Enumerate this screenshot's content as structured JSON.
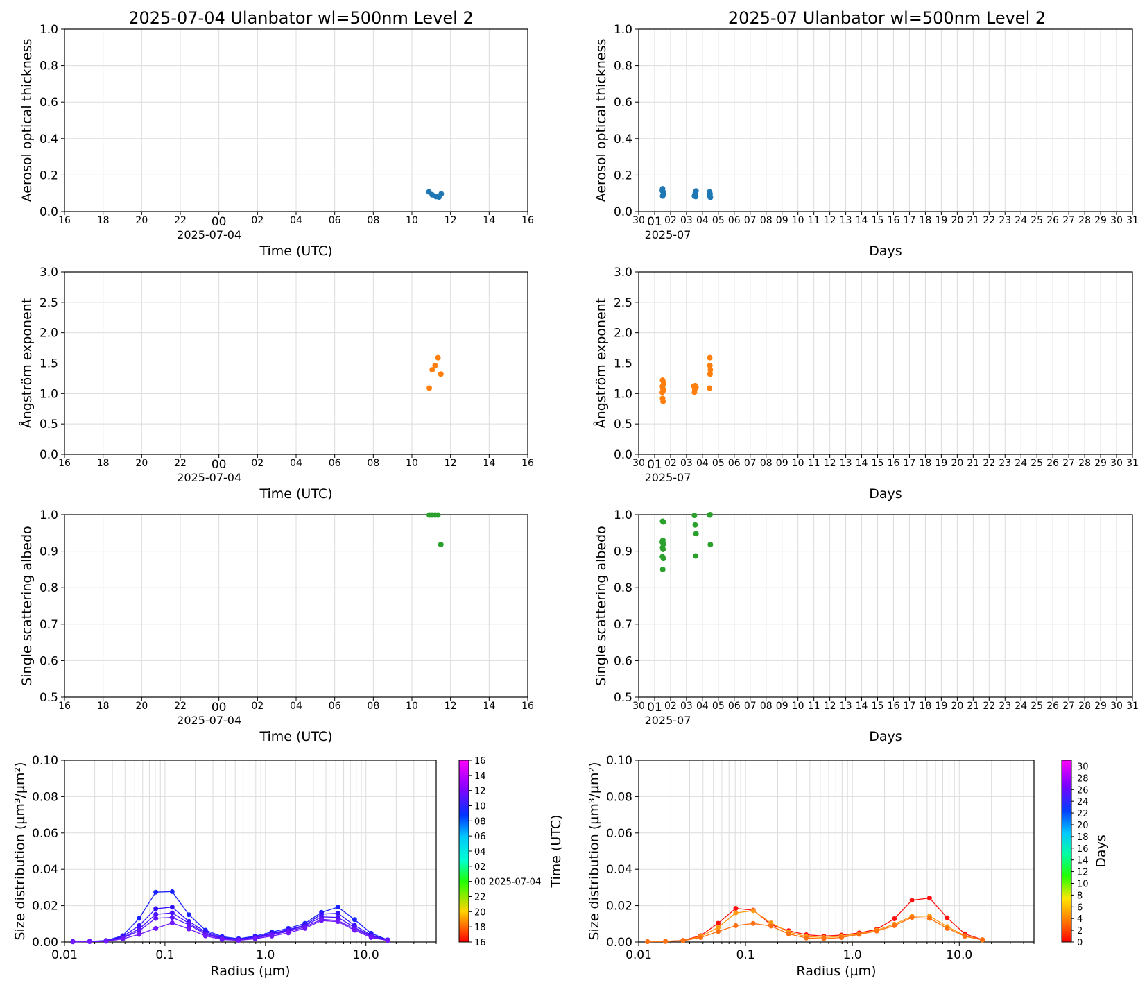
{
  "left_title": "2025-07-04  Ulanbator  wl=500nm  Level 2",
  "right_title": "2025-07  Ulanbator  wl=500nm  Level 2",
  "left_xlabel": "Time (UTC)",
  "left_date_label": "2025-07-04",
  "right_xlabel": "Days",
  "right_month_label": "2025-07",
  "hour_ticks": [
    "16",
    "18",
    "20",
    "22",
    "00",
    "02",
    "04",
    "06",
    "08",
    "10",
    "12",
    "14",
    "16"
  ],
  "day_ticks": [
    "30",
    "01",
    "02",
    "03",
    "04",
    "05",
    "06",
    "07",
    "08",
    "09",
    "10",
    "11",
    "12",
    "13",
    "14",
    "15",
    "16",
    "17",
    "18",
    "19",
    "20",
    "21",
    "22",
    "23",
    "24",
    "25",
    "26",
    "27",
    "28",
    "29",
    "30",
    "31"
  ],
  "chart_data": [
    {
      "id": "aot_day",
      "type": "scatter",
      "ylabel": "Aerosol optical thickness",
      "x_unit": "hours since 2025-07-03 16:00 UTC",
      "xlim": [
        0,
        24
      ],
      "ylim": [
        0,
        1.0
      ],
      "yticks": [
        "0.0",
        "0.2",
        "0.4",
        "0.6",
        "0.8",
        "1.0"
      ],
      "color": "#1f77b4",
      "x": [
        18.88,
        19.05,
        19.25,
        19.4,
        19.52
      ],
      "y": [
        0.108,
        0.092,
        0.082,
        0.079,
        0.097
      ]
    },
    {
      "id": "aot_month",
      "type": "scatter",
      "ylabel": "Aerosol optical thickness",
      "x_unit": "days since 2025-06-30 00:00",
      "xlim": [
        0,
        31
      ],
      "ylim": [
        0,
        1.0
      ],
      "yticks": [
        "0.0",
        "0.2",
        "0.4",
        "0.6",
        "0.8",
        "1.0"
      ],
      "color": "#1f77b4",
      "x": [
        1.5,
        1.52,
        1.55,
        1.5,
        1.57,
        1.53,
        1.48,
        3.5,
        3.55,
        3.6,
        3.52,
        3.58,
        4.45,
        4.48,
        4.46,
        4.5,
        4.47
      ],
      "y": [
        0.125,
        0.11,
        0.095,
        0.085,
        0.1,
        0.09,
        0.115,
        0.085,
        0.1,
        0.113,
        0.09,
        0.082,
        0.108,
        0.095,
        0.085,
        0.078,
        0.1
      ]
    },
    {
      "id": "angstrom_day",
      "type": "scatter",
      "ylabel": "Ångström exponent",
      "x_unit": "hours since 2025-07-03 16:00 UTC",
      "xlim": [
        0,
        24
      ],
      "ylim": [
        0,
        3.0
      ],
      "yticks": [
        "0.0",
        "0.5",
        "1.0",
        "1.5",
        "2.0",
        "2.5",
        "3.0"
      ],
      "color": "#ff7f0e",
      "x": [
        18.9,
        19.05,
        19.2,
        19.35,
        19.5
      ],
      "y": [
        1.09,
        1.39,
        1.46,
        1.59,
        1.32
      ]
    },
    {
      "id": "angstrom_month",
      "type": "scatter",
      "ylabel": "Ångström exponent",
      "x_unit": "days since 2025-06-30 00:00",
      "xlim": [
        0,
        31
      ],
      "ylim": [
        0,
        3.0
      ],
      "yticks": [
        "0.0",
        "0.5",
        "1.0",
        "1.5",
        "2.0",
        "2.5",
        "3.0"
      ],
      "color": "#ff7f0e",
      "x": [
        1.5,
        1.55,
        1.52,
        1.48,
        1.57,
        1.5,
        1.53,
        1.49,
        1.55,
        3.45,
        3.55,
        3.5,
        3.6,
        3.52,
        4.45,
        4.48,
        4.5,
        4.47,
        4.46
      ],
      "y": [
        1.22,
        1.15,
        1.08,
        1.02,
        1.18,
        0.92,
        0.87,
        1.12,
        1.05,
        1.12,
        1.13,
        1.02,
        1.1,
        1.07,
        1.09,
        1.32,
        1.39,
        1.46,
        1.59
      ]
    },
    {
      "id": "ssa_day",
      "type": "scatter",
      "ylabel": "Single scattering albedo",
      "x_unit": "hours since 2025-07-03 16:00 UTC",
      "xlim": [
        0,
        24
      ],
      "ylim": [
        0.5,
        1.0
      ],
      "yticks": [
        "0.5",
        "0.6",
        "0.7",
        "0.8",
        "0.9",
        "1.0"
      ],
      "color": "#2ca02c",
      "x": [
        18.9,
        19.05,
        19.2,
        19.35,
        19.5
      ],
      "y": [
        0.999,
        0.999,
        0.999,
        0.999,
        0.918
      ]
    },
    {
      "id": "ssa_month",
      "type": "scatter",
      "ylabel": "Single scattering albedo",
      "x_unit": "days since 2025-06-30 00:00",
      "xlim": [
        0,
        31
      ],
      "ylim": [
        0.5,
        1.0
      ],
      "yticks": [
        "0.5",
        "0.6",
        "0.7",
        "0.8",
        "0.9",
        "1.0"
      ],
      "color": "#2ca02c",
      "x": [
        1.5,
        1.55,
        1.52,
        1.48,
        1.57,
        1.5,
        1.53,
        1.49,
        1.55,
        1.51,
        3.5,
        3.55,
        3.6,
        3.58,
        4.45,
        4.48,
        4.5,
        4.47
      ],
      "y": [
        0.982,
        0.98,
        0.93,
        0.925,
        0.92,
        0.91,
        0.905,
        0.885,
        0.88,
        0.85,
        0.998,
        0.972,
        0.948,
        0.887,
        0.999,
        1.0,
        0.918,
        0.999
      ]
    },
    {
      "id": "size_dist_day",
      "type": "line",
      "ylabel": "Size distribution (µm³/µm²)",
      "xlabel": "Radius (µm)",
      "xscale": "log",
      "xlim": [
        0.01,
        50
      ],
      "ylim": [
        0,
        0.1
      ],
      "xticks": [
        "0.01",
        "0.1",
        "1.0",
        "10.0"
      ],
      "yticks": [
        "0.00",
        "0.02",
        "0.04",
        "0.06",
        "0.08",
        "0.10"
      ],
      "radius": [
        0.0121,
        0.0178,
        0.026,
        0.038,
        0.0554,
        0.081,
        0.118,
        0.173,
        0.253,
        0.37,
        0.54,
        0.79,
        1.156,
        1.69,
        2.47,
        3.61,
        5.27,
        7.71,
        11.27,
        16.47
      ],
      "series": [
        {
          "color": "#1a22ff",
          "values": [
            0.0003,
            0.0004,
            0.0008,
            0.0035,
            0.013,
            0.0274,
            0.0277,
            0.015,
            0.0065,
            0.003,
            0.0018,
            0.0033,
            0.0055,
            0.0075,
            0.0102,
            0.0163,
            0.0192,
            0.0123,
            0.0048,
            0.0012
          ]
        },
        {
          "color": "#3410ff",
          "values": [
            0.0002,
            0.0003,
            0.0007,
            0.003,
            0.009,
            0.0183,
            0.0192,
            0.0113,
            0.0056,
            0.0025,
            0.0015,
            0.0028,
            0.0048,
            0.0068,
            0.0093,
            0.0153,
            0.0158,
            0.0091,
            0.0039,
            0.0011
          ]
        },
        {
          "color": "#4a12ff",
          "values": [
            0.0002,
            0.0003,
            0.0006,
            0.0025,
            0.0072,
            0.0152,
            0.016,
            0.0103,
            0.0048,
            0.0021,
            0.0013,
            0.0025,
            0.0045,
            0.0063,
            0.0089,
            0.0138,
            0.0135,
            0.008,
            0.0034,
            0.001
          ]
        },
        {
          "color": "#5e14ff",
          "values": [
            0.0002,
            0.0003,
            0.0005,
            0.0022,
            0.0062,
            0.013,
            0.0135,
            0.0095,
            0.0042,
            0.0018,
            0.0011,
            0.0022,
            0.004,
            0.0058,
            0.0082,
            0.0125,
            0.0118,
            0.0072,
            0.003,
            0.0009
          ]
        },
        {
          "color": "#7018ff",
          "values": [
            0.0001,
            0.0002,
            0.0004,
            0.0017,
            0.0042,
            0.0075,
            0.0105,
            0.0072,
            0.0034,
            0.0014,
            0.0009,
            0.0018,
            0.0033,
            0.005,
            0.0075,
            0.0118,
            0.0112,
            0.0065,
            0.0025,
            0.0008
          ]
        }
      ],
      "colorbar": {
        "label": "Time (UTC)",
        "ticks": [
          "16",
          "18",
          "20",
          "22",
          "00 2025-07-04",
          "02",
          "04",
          "06",
          "08",
          "10",
          "12",
          "14",
          "16"
        ]
      }
    },
    {
      "id": "size_dist_month",
      "type": "line",
      "ylabel": "Size distribution (µm³/µm²)",
      "xlabel": "Radius (µm)",
      "xscale": "log",
      "xlim": [
        0.01,
        50
      ],
      "ylim": [
        0,
        0.1
      ],
      "xticks": [
        "0.01",
        "0.1",
        "1.0",
        "10.0"
      ],
      "yticks": [
        "0.00",
        "0.02",
        "0.04",
        "0.06",
        "0.08",
        "0.10"
      ],
      "radius": [
        0.0121,
        0.0178,
        0.026,
        0.038,
        0.0554,
        0.081,
        0.118,
        0.173,
        0.253,
        0.37,
        0.54,
        0.79,
        1.156,
        1.69,
        2.47,
        3.61,
        5.27,
        7.71,
        11.27,
        16.47
      ],
      "series": [
        {
          "color": "#ff1010",
          "values": [
            0.0002,
            0.0004,
            0.0009,
            0.0035,
            0.0103,
            0.0185,
            0.0175,
            0.0095,
            0.0062,
            0.004,
            0.0033,
            0.0038,
            0.005,
            0.007,
            0.0128,
            0.023,
            0.0242,
            0.0133,
            0.0045,
            0.0013
          ]
        },
        {
          "color": "#ff9a10",
          "values": [
            0.0002,
            0.0003,
            0.0008,
            0.003,
            0.008,
            0.016,
            0.0172,
            0.0105,
            0.0055,
            0.003,
            0.0025,
            0.0032,
            0.0045,
            0.0065,
            0.0098,
            0.0142,
            0.0142,
            0.0085,
            0.0035,
            0.0012
          ]
        },
        {
          "color": "#ff7010",
          "values": [
            0.0002,
            0.0003,
            0.0007,
            0.0025,
            0.0058,
            0.009,
            0.0102,
            0.0088,
            0.0045,
            0.0022,
            0.0018,
            0.0025,
            0.0042,
            0.006,
            0.009,
            0.0135,
            0.013,
            0.0075,
            0.0032,
            0.0011
          ]
        }
      ],
      "colorbar": {
        "label": "Days",
        "ticks": [
          "0",
          "2",
          "4",
          "6",
          "8",
          "10",
          "12",
          "14",
          "16",
          "18",
          "20",
          "22",
          "24",
          "26",
          "28",
          "30"
        ]
      }
    }
  ]
}
